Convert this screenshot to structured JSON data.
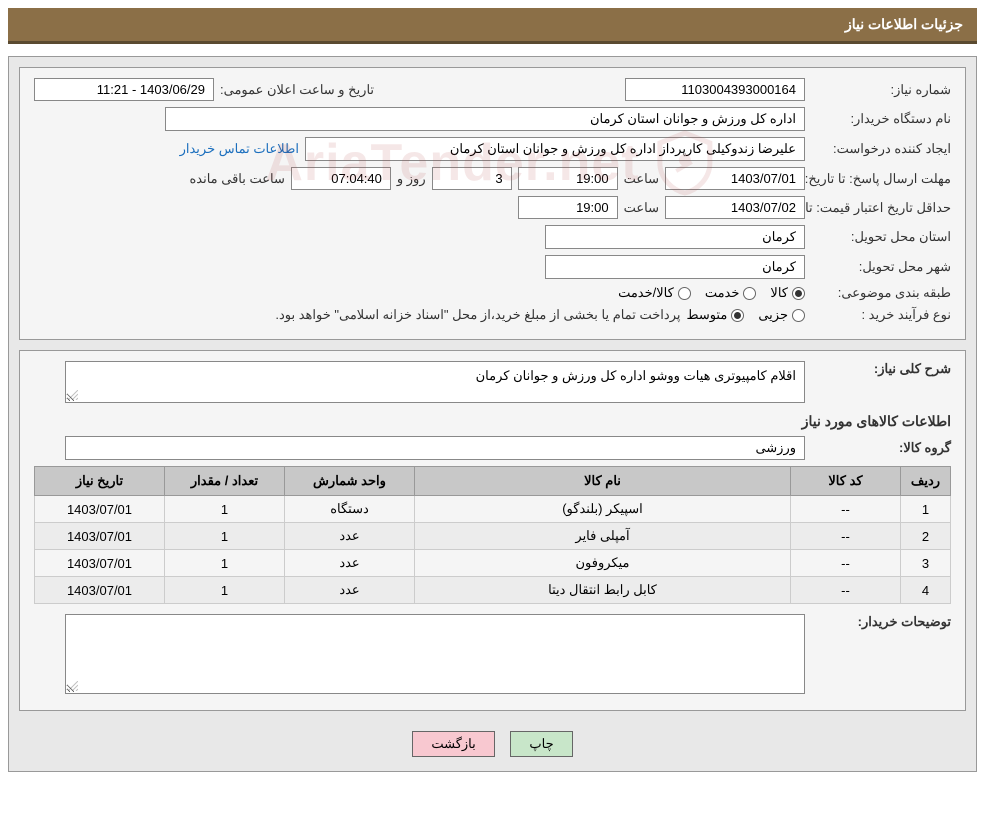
{
  "header": {
    "title": "جزئیات اطلاعات نیاز"
  },
  "fields": {
    "need_no_lbl": "شماره نیاز:",
    "need_no": "1103004393000164",
    "announce_lbl": "تاریخ و ساعت اعلان عمومی:",
    "announce_val": "1403/06/29 - 11:21",
    "buyer_org_lbl": "نام دستگاه خریدار:",
    "buyer_org": "اداره کل ورزش و جوانان استان کرمان",
    "requester_lbl": "ایجاد کننده درخواست:",
    "requester": "علیرضا  زندوکیلی  کارپرداز اداره کل ورزش و جوانان استان کرمان",
    "contact_link": "اطلاعات تماس خریدار",
    "reply_deadline_lbl": "مهلت ارسال پاسخ: تا تاریخ:",
    "reply_deadline_date": "1403/07/01",
    "time_lbl": "ساعت",
    "reply_deadline_time": "19:00",
    "days_and_lbl": "روز و",
    "days_remaining": "3",
    "countdown": "07:04:40",
    "remaining_lbl": "ساعت باقی مانده",
    "price_valid_lbl": "حداقل تاریخ اعتبار قیمت: تا تاریخ:",
    "price_valid_date": "1403/07/02",
    "price_valid_time": "19:00",
    "delivery_province_lbl": "استان محل تحویل:",
    "delivery_province": "کرمان",
    "delivery_city_lbl": "شهر محل تحویل:",
    "delivery_city": "کرمان",
    "category_lbl": "طبقه بندی موضوعی:",
    "cat_opt1": "کالا",
    "cat_opt2": "خدمت",
    "cat_opt3": "کالا/خدمت",
    "process_lbl": "نوع فرآیند خرید :",
    "proc_opt1": "جزیی",
    "proc_opt2": "متوسط",
    "process_note": "پرداخت تمام یا بخشی از مبلغ خرید،از محل \"اسناد خزانه اسلامی\" خواهد بود."
  },
  "need": {
    "desc_lbl": "شرح کلی نیاز:",
    "desc": "اقلام کامپیوتری هیات ووشو اداره کل ورزش و جوانان کرمان",
    "items_title": "اطلاعات کالاهای مورد نیاز",
    "group_lbl": "گروه کالا:",
    "group": "ورزشى",
    "buyer_notes_lbl": "توضیحات خریدار:"
  },
  "table": {
    "headers": {
      "row": "ردیف",
      "code": "کد کالا",
      "name": "نام کالا",
      "unit": "واحد شمارش",
      "qty": "تعداد / مقدار",
      "date": "تاریخ نیاز"
    },
    "rows": [
      {
        "n": "1",
        "code": "--",
        "name": "اسپيکر (بلندگو)",
        "unit": "دستگاه",
        "qty": "1",
        "date": "1403/07/01"
      },
      {
        "n": "2",
        "code": "--",
        "name": "آمپلی فایر",
        "unit": "عدد",
        "qty": "1",
        "date": "1403/07/01"
      },
      {
        "n": "3",
        "code": "--",
        "name": "میکروفون",
        "unit": "عدد",
        "qty": "1",
        "date": "1403/07/01"
      },
      {
        "n": "4",
        "code": "--",
        "name": "کابل رابط انتقال دیتا",
        "unit": "عدد",
        "qty": "1",
        "date": "1403/07/01"
      }
    ]
  },
  "buttons": {
    "print": "چاپ",
    "back": "بازگشت"
  },
  "watermark": "AriaTender.net",
  "colors": {
    "header_bg": "#8b6f47",
    "panel_bg": "#e8e8e8",
    "section_bg": "#f5f5f5",
    "th_bg": "#c8c8c8",
    "link": "#1a6ebd",
    "btn_print": "#c8e6c9",
    "btn_back": "#f8c8d0"
  }
}
